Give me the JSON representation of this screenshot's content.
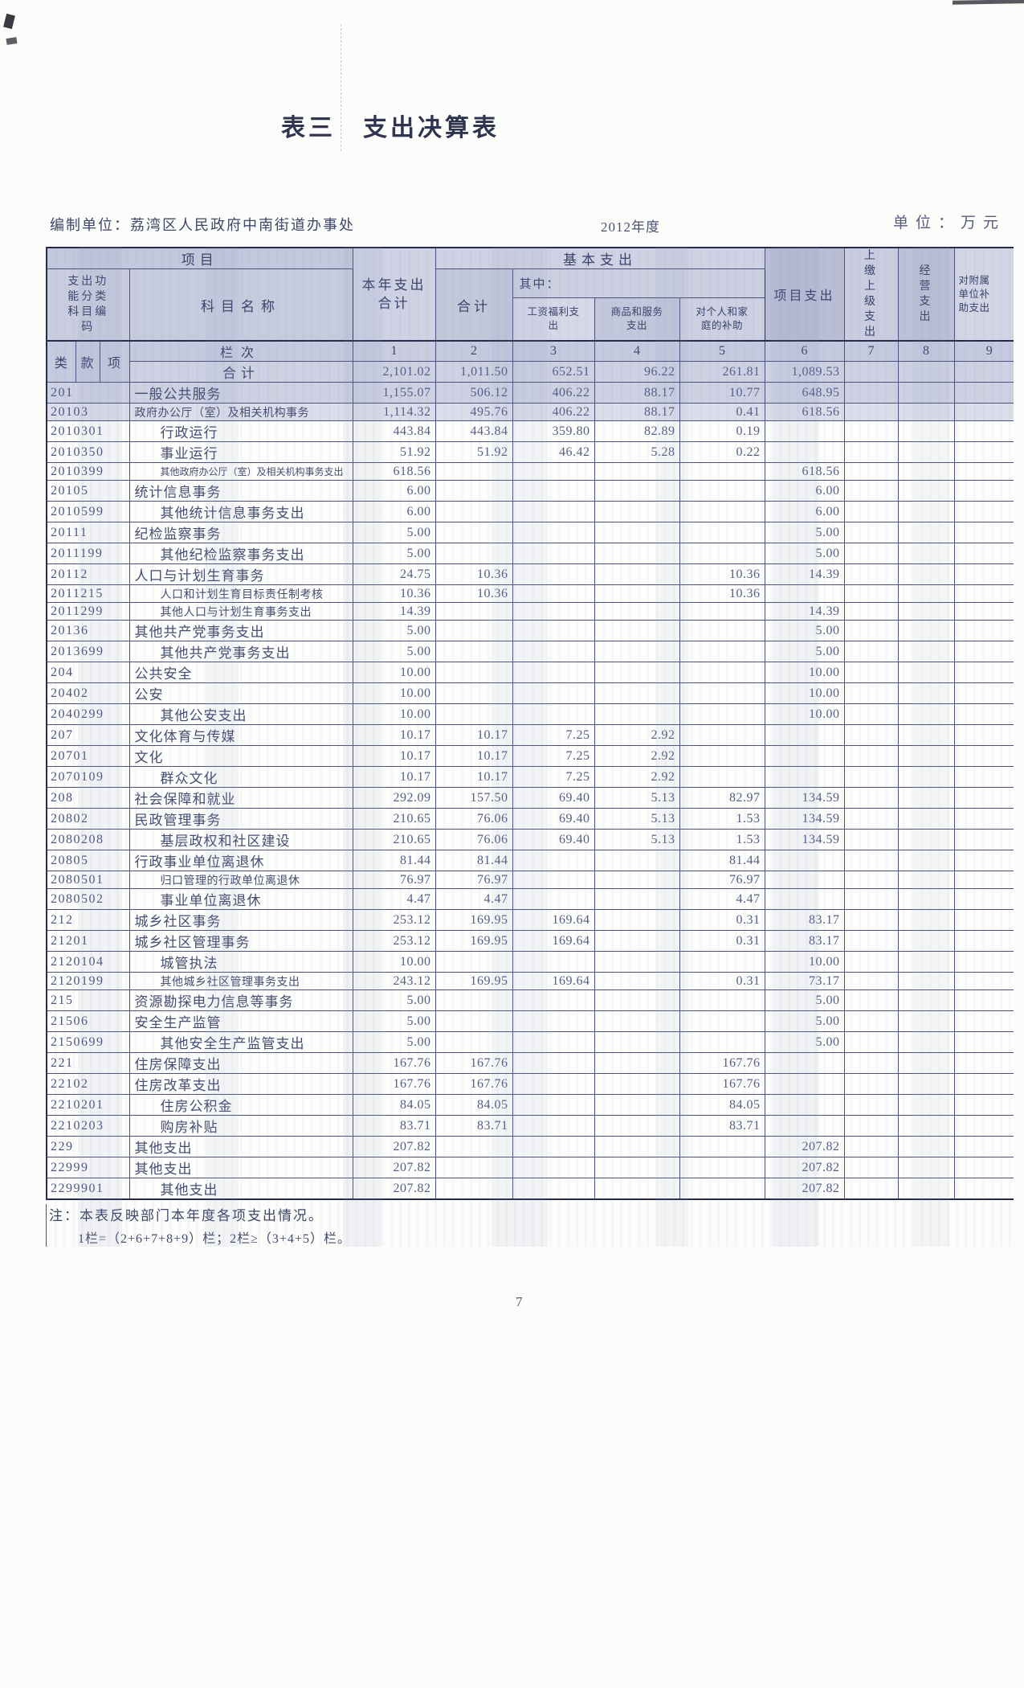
{
  "colors": {
    "border": "#23284a",
    "header_bg": "#c6cade",
    "row_shade": "#cdd1e2",
    "text": "#454c72"
  },
  "page": {
    "title": "表三　支出决算表",
    "meta": {
      "unit_label": "编制单位：荔湾区人民政府中南街道办事处",
      "year": "2012年度",
      "currency_label": "单位：万元"
    },
    "notes": {
      "line1": "注：本表反映部门本年度各项支出情况。",
      "line2": "1栏=（2+6+7+8+9）栏；2栏≥（3+4+5）栏。"
    },
    "page_number": "7"
  },
  "table": {
    "header": {
      "item": "项目",
      "code_group": "支出功能分类科目编码",
      "subject_name": "科目名称",
      "year_total": "本年支出合计",
      "basic": "基本支出",
      "basic_total": "合计",
      "among": "其中：",
      "salary": "工资福利支出",
      "goods": "商品和服务支出",
      "personal": "对个人和家庭的补助",
      "project": "项目支出",
      "upper": "上缴上级支出",
      "operating": "经营支出",
      "affiliated": "对附属单位补助支出",
      "col_index_label": "栏次",
      "cat": "类",
      "sec": "款",
      "itm": "项",
      "col_numbers": [
        "1",
        "2",
        "3",
        "4",
        "5",
        "6",
        "7",
        "8",
        "9"
      ]
    },
    "rows": [
      {
        "total": true,
        "name": "合计",
        "shade": "shade1",
        "values": [
          "2,101.02",
          "1,011.50",
          "652.51",
          "96.22",
          "261.81",
          "1,089.53",
          "",
          "",
          ""
        ]
      },
      {
        "code": "201",
        "name": "一般公共服务",
        "shade": "shade1",
        "values": [
          "1,155.07",
          "506.12",
          "406.22",
          "88.17",
          "10.77",
          "648.95",
          "",
          "",
          ""
        ]
      },
      {
        "code": "20103",
        "name": "政府办公厅（室）及相关机构事务",
        "shade": "shade2",
        "values": [
          "1,114.32",
          "495.76",
          "406.22",
          "88.17",
          "0.41",
          "618.56",
          "",
          "",
          ""
        ]
      },
      {
        "code": "2010301",
        "name": "行政运行",
        "values": [
          "443.84",
          "443.84",
          "359.80",
          "82.89",
          "0.19",
          "",
          "",
          "",
          ""
        ]
      },
      {
        "code": "2010350",
        "name": "事业运行",
        "values": [
          "51.92",
          "51.92",
          "46.42",
          "5.28",
          "0.22",
          "",
          "",
          "",
          ""
        ]
      },
      {
        "code": "2010399",
        "name": "其他政府办公厅（室）及相关机构事务支出",
        "values": [
          "618.56",
          "",
          "",
          "",
          "",
          "618.56",
          "",
          "",
          ""
        ]
      },
      {
        "code": "20105",
        "name": "统计信息事务",
        "values": [
          "6.00",
          "",
          "",
          "",
          "",
          "6.00",
          "",
          "",
          ""
        ]
      },
      {
        "code": "2010599",
        "name": "其他统计信息事务支出",
        "values": [
          "6.00",
          "",
          "",
          "",
          "",
          "6.00",
          "",
          "",
          ""
        ]
      },
      {
        "code": "20111",
        "name": "纪检监察事务",
        "values": [
          "5.00",
          "",
          "",
          "",
          "",
          "5.00",
          "",
          "",
          ""
        ]
      },
      {
        "code": "2011199",
        "name": "其他纪检监察事务支出",
        "values": [
          "5.00",
          "",
          "",
          "",
          "",
          "5.00",
          "",
          "",
          ""
        ]
      },
      {
        "code": "20112",
        "name": "人口与计划生育事务",
        "values": [
          "24.75",
          "10.36",
          "",
          "",
          "10.36",
          "14.39",
          "",
          "",
          ""
        ]
      },
      {
        "code": "2011215",
        "name": "人口和计划生育目标责任制考核",
        "values": [
          "10.36",
          "10.36",
          "",
          "",
          "10.36",
          "",
          "",
          "",
          ""
        ]
      },
      {
        "code": "2011299",
        "name": "其他人口与计划生育事务支出",
        "values": [
          "14.39",
          "",
          "",
          "",
          "",
          "14.39",
          "",
          "",
          ""
        ]
      },
      {
        "code": "20136",
        "name": "其他共产党事务支出",
        "values": [
          "5.00",
          "",
          "",
          "",
          "",
          "5.00",
          "",
          "",
          ""
        ]
      },
      {
        "code": "2013699",
        "name": "其他共产党事务支出",
        "values": [
          "5.00",
          "",
          "",
          "",
          "",
          "5.00",
          "",
          "",
          ""
        ]
      },
      {
        "code": "204",
        "name": "公共安全",
        "values": [
          "10.00",
          "",
          "",
          "",
          "",
          "10.00",
          "",
          "",
          ""
        ]
      },
      {
        "code": "20402",
        "name": "公安",
        "values": [
          "10.00",
          "",
          "",
          "",
          "",
          "10.00",
          "",
          "",
          ""
        ]
      },
      {
        "code": "2040299",
        "name": "其他公安支出",
        "values": [
          "10.00",
          "",
          "",
          "",
          "",
          "10.00",
          "",
          "",
          ""
        ]
      },
      {
        "code": "207",
        "name": "文化体育与传媒",
        "values": [
          "10.17",
          "10.17",
          "7.25",
          "2.92",
          "",
          "",
          "",
          "",
          ""
        ]
      },
      {
        "code": "20701",
        "name": "文化",
        "values": [
          "10.17",
          "10.17",
          "7.25",
          "2.92",
          "",
          "",
          "",
          "",
          ""
        ]
      },
      {
        "code": "2070109",
        "name": "群众文化",
        "values": [
          "10.17",
          "10.17",
          "7.25",
          "2.92",
          "",
          "",
          "",
          "",
          ""
        ]
      },
      {
        "code": "208",
        "name": "社会保障和就业",
        "values": [
          "292.09",
          "157.50",
          "69.40",
          "5.13",
          "82.97",
          "134.59",
          "",
          "",
          ""
        ]
      },
      {
        "code": "20802",
        "name": "民政管理事务",
        "values": [
          "210.65",
          "76.06",
          "69.40",
          "5.13",
          "1.53",
          "134.59",
          "",
          "",
          ""
        ]
      },
      {
        "code": "2080208",
        "name": "基层政权和社区建设",
        "values": [
          "210.65",
          "76.06",
          "69.40",
          "5.13",
          "1.53",
          "134.59",
          "",
          "",
          ""
        ]
      },
      {
        "code": "20805",
        "name": "行政事业单位离退休",
        "values": [
          "81.44",
          "81.44",
          "",
          "",
          "81.44",
          "",
          "",
          "",
          ""
        ]
      },
      {
        "code": "2080501",
        "name": "归口管理的行政单位离退休",
        "values": [
          "76.97",
          "76.97",
          "",
          "",
          "76.97",
          "",
          "",
          "",
          ""
        ]
      },
      {
        "code": "2080502",
        "name": "事业单位离退休",
        "values": [
          "4.47",
          "4.47",
          "",
          "",
          "4.47",
          "",
          "",
          "",
          ""
        ]
      },
      {
        "code": "212",
        "name": "城乡社区事务",
        "values": [
          "253.12",
          "169.95",
          "169.64",
          "",
          "0.31",
          "83.17",
          "",
          "",
          ""
        ]
      },
      {
        "code": "21201",
        "name": "城乡社区管理事务",
        "values": [
          "253.12",
          "169.95",
          "169.64",
          "",
          "0.31",
          "83.17",
          "",
          "",
          ""
        ]
      },
      {
        "code": "2120104",
        "name": "城管执法",
        "values": [
          "10.00",
          "",
          "",
          "",
          "",
          "10.00",
          "",
          "",
          ""
        ]
      },
      {
        "code": "2120199",
        "name": "其他城乡社区管理事务支出",
        "values": [
          "243.12",
          "169.95",
          "169.64",
          "",
          "0.31",
          "73.17",
          "",
          "",
          ""
        ]
      },
      {
        "code": "215",
        "name": "资源勘探电力信息等事务",
        "values": [
          "5.00",
          "",
          "",
          "",
          "",
          "5.00",
          "",
          "",
          ""
        ]
      },
      {
        "code": "21506",
        "name": "安全生产监管",
        "values": [
          "5.00",
          "",
          "",
          "",
          "",
          "5.00",
          "",
          "",
          ""
        ]
      },
      {
        "code": "2150699",
        "name": "其他安全生产监管支出",
        "values": [
          "5.00",
          "",
          "",
          "",
          "",
          "5.00",
          "",
          "",
          ""
        ]
      },
      {
        "code": "221",
        "name": "住房保障支出",
        "values": [
          "167.76",
          "167.76",
          "",
          "",
          "167.76",
          "",
          "",
          "",
          ""
        ]
      },
      {
        "code": "22102",
        "name": "住房改革支出",
        "values": [
          "167.76",
          "167.76",
          "",
          "",
          "167.76",
          "",
          "",
          "",
          ""
        ]
      },
      {
        "code": "2210201",
        "name": "住房公积金",
        "values": [
          "84.05",
          "84.05",
          "",
          "",
          "84.05",
          "",
          "",
          "",
          ""
        ]
      },
      {
        "code": "2210203",
        "name": "购房补贴",
        "values": [
          "83.71",
          "83.71",
          "",
          "",
          "83.71",
          "",
          "",
          "",
          ""
        ]
      },
      {
        "code": "229",
        "name": "其他支出",
        "values": [
          "207.82",
          "",
          "",
          "",
          "",
          "207.82",
          "",
          "",
          ""
        ]
      },
      {
        "code": "22999",
        "name": "其他支出",
        "values": [
          "207.82",
          "",
          "",
          "",
          "",
          "207.82",
          "",
          "",
          ""
        ]
      },
      {
        "code": "2299901",
        "name": "其他支出",
        "values": [
          "207.82",
          "",
          "",
          "",
          "",
          "207.82",
          "",
          "",
          ""
        ]
      }
    ]
  }
}
